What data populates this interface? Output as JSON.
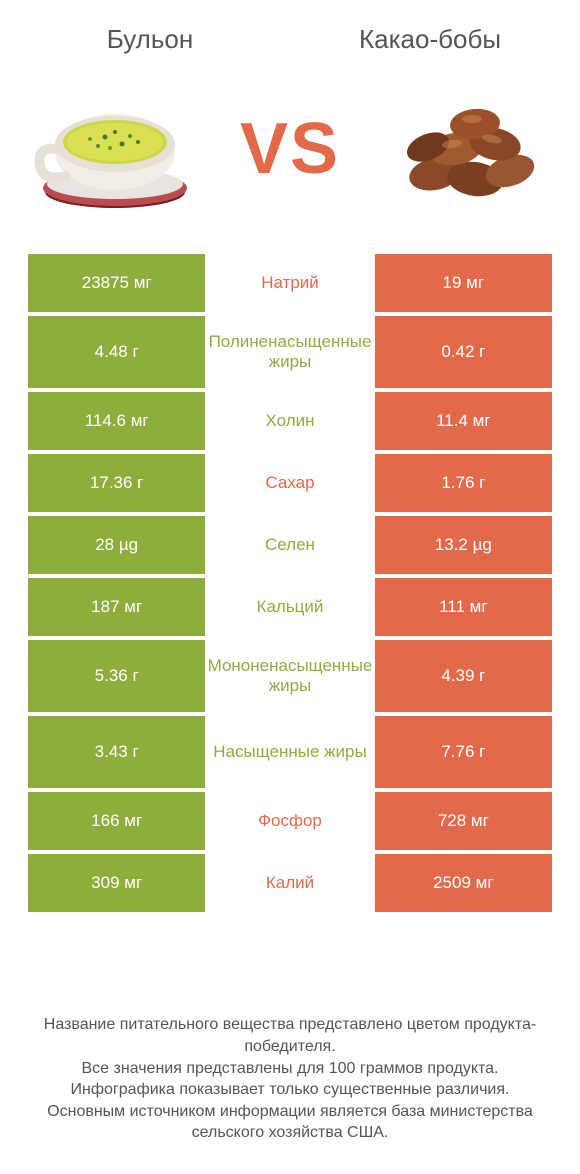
{
  "header": {
    "left_title": "Бульон",
    "right_title": "Какао-бобы",
    "vs_label": "VS"
  },
  "colors": {
    "green": "#8fad3c",
    "orange": "#e26a4b",
    "text": "#555555",
    "background": "#ffffff"
  },
  "table": {
    "rows": [
      {
        "left": "23875 мг",
        "label": "Натрий",
        "right": "19 мг",
        "winner": "orange",
        "tall": false
      },
      {
        "left": "4.48 г",
        "label": "Полиненасыщенные жиры",
        "right": "0.42 г",
        "winner": "green",
        "tall": true
      },
      {
        "left": "114.6 мг",
        "label": "Холин",
        "right": "11.4 мг",
        "winner": "green",
        "tall": false
      },
      {
        "left": "17.36 г",
        "label": "Сахар",
        "right": "1.76 г",
        "winner": "orange",
        "tall": false
      },
      {
        "left": "28 µg",
        "label": "Селен",
        "right": "13.2 µg",
        "winner": "green",
        "tall": false
      },
      {
        "left": "187 мг",
        "label": "Кальций",
        "right": "111 мг",
        "winner": "green",
        "tall": false
      },
      {
        "left": "5.36 г",
        "label": "Мононенасыщенные жиры",
        "right": "4.39 г",
        "winner": "green",
        "tall": true
      },
      {
        "left": "3.43 г",
        "label": "Насыщенные жиры",
        "right": "7.76 г",
        "winner": "green",
        "tall": true
      },
      {
        "left": "166 мг",
        "label": "Фосфор",
        "right": "728 мг",
        "winner": "orange",
        "tall": false
      },
      {
        "left": "309 мг",
        "label": "Калий",
        "right": "2509 мг",
        "winner": "orange",
        "tall": false
      }
    ]
  },
  "footer": {
    "line1": "Название питательного вещества представлено цветом продукта-победителя.",
    "line2": "Все значения представлены для 100 граммов продукта.",
    "line3": "Инфографика показывает только существенные различия.",
    "line4": "Основным источником информации является база министерства сельского хозяйства США."
  }
}
